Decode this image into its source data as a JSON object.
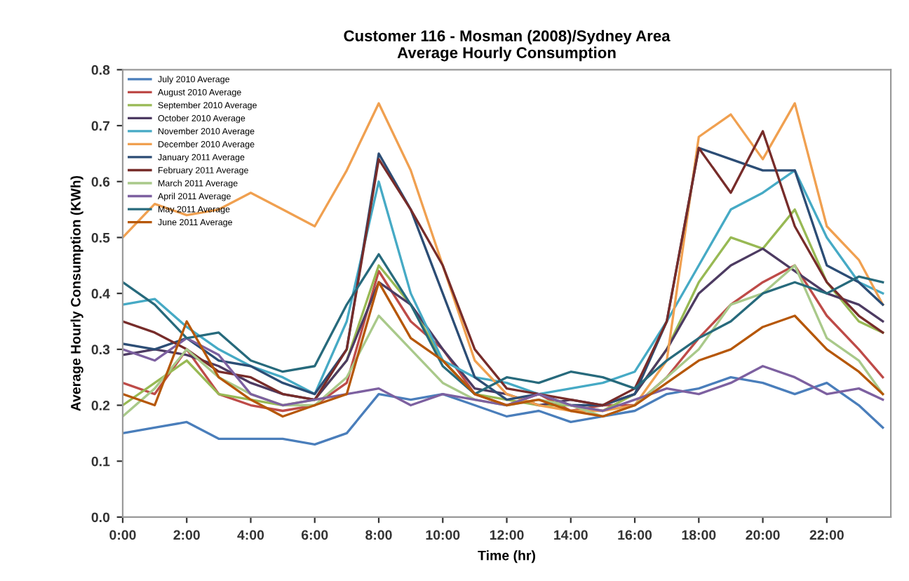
{
  "chart_data": {
    "type": "line",
    "title": "Customer 116 - Mosman (2008)/Sydney Area\nAverage Hourly Consumption",
    "xlabel": "Time (hr)",
    "ylabel": "Average Hourly Consumption (KWh)",
    "x": [
      0,
      1,
      2,
      3,
      4,
      5,
      6,
      7,
      8,
      9,
      10,
      11,
      12,
      13,
      14,
      15,
      16,
      17,
      18,
      19,
      20,
      21,
      22,
      23,
      23.75
    ],
    "xlim": [
      0,
      24
    ],
    "xticks": [
      {
        "value": 0,
        "label": "0:00"
      },
      {
        "value": 2,
        "label": "2:00"
      },
      {
        "value": 4,
        "label": "4:00"
      },
      {
        "value": 6,
        "label": "6:00"
      },
      {
        "value": 8,
        "label": "8:00"
      },
      {
        "value": 10,
        "label": "10:00"
      },
      {
        "value": 12,
        "label": "12:00"
      },
      {
        "value": 14,
        "label": "14:00"
      },
      {
        "value": 16,
        "label": "16:00"
      },
      {
        "value": 18,
        "label": "18:00"
      },
      {
        "value": 20,
        "label": "20:00"
      },
      {
        "value": 22,
        "label": "22:00"
      }
    ],
    "ylim": [
      0,
      0.8
    ],
    "yticks": [
      {
        "value": 0,
        "label": "0.0"
      },
      0.1,
      0.2,
      0.3,
      0.4,
      0.5,
      0.6,
      0.7,
      0.8
    ],
    "grid": false,
    "legend": "top left",
    "marker": "none",
    "line_style": "solid",
    "series": [
      {
        "name": "July 2010 Average",
        "color": "#4a7ebb",
        "values": [
          0.15,
          0.16,
          0.17,
          0.14,
          0.14,
          0.14,
          0.13,
          0.15,
          0.22,
          0.21,
          0.22,
          0.2,
          0.18,
          0.19,
          0.17,
          0.18,
          0.19,
          0.22,
          0.23,
          0.25,
          0.24,
          0.22,
          0.24,
          0.2,
          0.16
        ]
      },
      {
        "name": "August 2010 Average",
        "color": "#be4b48",
        "values": [
          0.24,
          0.22,
          0.3,
          0.22,
          0.2,
          0.19,
          0.2,
          0.24,
          0.44,
          0.35,
          0.3,
          0.22,
          0.2,
          0.22,
          0.19,
          0.2,
          0.2,
          0.25,
          0.32,
          0.38,
          0.42,
          0.45,
          0.36,
          0.3,
          0.25
        ]
      },
      {
        "name": "September 2010 Average",
        "color": "#98b954",
        "values": [
          0.2,
          0.24,
          0.28,
          0.22,
          0.21,
          0.2,
          0.21,
          0.28,
          0.45,
          0.38,
          0.28,
          0.22,
          0.21,
          0.2,
          0.2,
          0.19,
          0.22,
          0.3,
          0.42,
          0.5,
          0.48,
          0.55,
          0.42,
          0.35,
          0.33
        ]
      },
      {
        "name": "October 2010 Average",
        "color": "#4d3b62",
        "values": [
          0.29,
          0.3,
          0.29,
          0.27,
          0.24,
          0.22,
          0.21,
          0.28,
          0.42,
          0.38,
          0.3,
          0.23,
          0.22,
          0.2,
          0.21,
          0.2,
          0.22,
          0.3,
          0.4,
          0.45,
          0.48,
          0.44,
          0.4,
          0.38,
          0.35
        ]
      },
      {
        "name": "November 2010 Average",
        "color": "#46aac5",
        "values": [
          0.38,
          0.39,
          0.34,
          0.3,
          0.27,
          0.25,
          0.22,
          0.35,
          0.6,
          0.4,
          0.28,
          0.25,
          0.24,
          0.22,
          0.23,
          0.24,
          0.26,
          0.35,
          0.45,
          0.55,
          0.58,
          0.62,
          0.5,
          0.42,
          0.4
        ]
      },
      {
        "name": "December 2010 Average",
        "color": "#f0a050",
        "values": [
          0.5,
          0.56,
          0.54,
          0.55,
          0.58,
          0.55,
          0.52,
          0.62,
          0.74,
          0.62,
          0.45,
          0.28,
          0.22,
          0.2,
          0.19,
          0.19,
          0.2,
          0.28,
          0.68,
          0.72,
          0.64,
          0.74,
          0.52,
          0.46,
          0.38
        ]
      },
      {
        "name": "January 2011 Average",
        "color": "#2c4d75",
        "values": [
          0.31,
          0.3,
          0.32,
          0.28,
          0.27,
          0.24,
          0.22,
          0.3,
          0.65,
          0.55,
          0.4,
          0.25,
          0.21,
          0.22,
          0.2,
          0.2,
          0.22,
          0.35,
          0.66,
          0.64,
          0.62,
          0.62,
          0.45,
          0.42,
          0.38
        ]
      },
      {
        "name": "February 2011 Average",
        "color": "#772c2a",
        "values": [
          0.35,
          0.33,
          0.3,
          0.26,
          0.25,
          0.22,
          0.21,
          0.3,
          0.64,
          0.55,
          0.45,
          0.3,
          0.23,
          0.22,
          0.21,
          0.2,
          0.23,
          0.35,
          0.66,
          0.58,
          0.69,
          0.52,
          0.42,
          0.36,
          0.33
        ]
      },
      {
        "name": "March 2011 Average",
        "color": "#a9c98a",
        "values": [
          0.18,
          0.23,
          0.3,
          0.25,
          0.22,
          0.2,
          0.2,
          0.25,
          0.36,
          0.3,
          0.24,
          0.21,
          0.2,
          0.21,
          0.2,
          0.18,
          0.2,
          0.25,
          0.3,
          0.38,
          0.4,
          0.45,
          0.32,
          0.28,
          0.22
        ]
      },
      {
        "name": "April 2011 Average",
        "color": "#7d60a0",
        "values": [
          0.3,
          0.28,
          0.32,
          0.29,
          0.22,
          0.2,
          0.21,
          0.22,
          0.23,
          0.2,
          0.22,
          0.21,
          0.2,
          0.22,
          0.2,
          0.19,
          0.21,
          0.23,
          0.22,
          0.24,
          0.27,
          0.25,
          0.22,
          0.23,
          0.21
        ]
      },
      {
        "name": "May 2011 Average",
        "color": "#276a7c",
        "values": [
          0.42,
          0.38,
          0.32,
          0.33,
          0.28,
          0.26,
          0.27,
          0.38,
          0.47,
          0.38,
          0.27,
          0.22,
          0.25,
          0.24,
          0.26,
          0.25,
          0.23,
          0.28,
          0.32,
          0.35,
          0.4,
          0.42,
          0.4,
          0.43,
          0.42
        ]
      },
      {
        "name": "June 2011 Average",
        "color": "#b65708",
        "values": [
          0.22,
          0.2,
          0.35,
          0.25,
          0.21,
          0.18,
          0.2,
          0.22,
          0.42,
          0.32,
          0.28,
          0.22,
          0.2,
          0.21,
          0.19,
          0.18,
          0.2,
          0.24,
          0.28,
          0.3,
          0.34,
          0.36,
          0.3,
          0.26,
          0.22
        ]
      }
    ]
  }
}
